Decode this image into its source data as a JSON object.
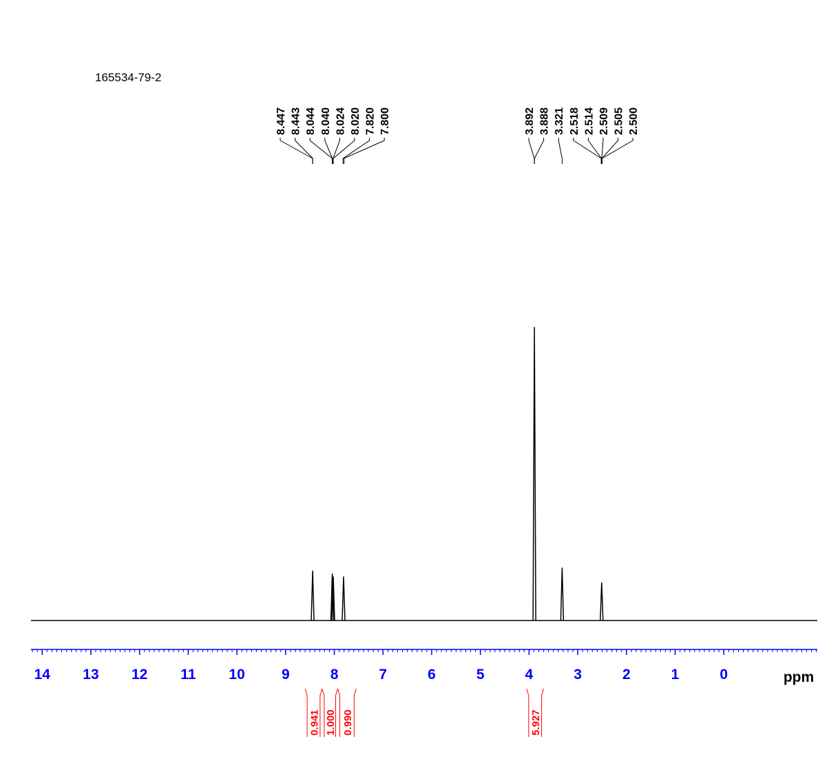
{
  "chart_data": {
    "type": "nmr",
    "title": "165534-79-2",
    "x_label": "ppm",
    "xlim": [
      14.23,
      -1.92
    ],
    "xticks": [
      14,
      13,
      12,
      11,
      10,
      9,
      8,
      7,
      6,
      5,
      4,
      3,
      2,
      1,
      0
    ],
    "ylim": [
      0,
      100
    ],
    "color": "#000000",
    "axis_color": "#0000ff",
    "integral_color": "#ff0000",
    "x": [
      8.445,
      8.042,
      8.022,
      7.81,
      3.89,
      3.321,
      2.509
    ],
    "values": [
      17,
      16,
      15,
      15,
      100,
      18,
      13
    ],
    "peak_label_groups": [
      [
        {
          "value": 8.447,
          "label": "8.447"
        },
        {
          "value": 8.443,
          "label": "8.443"
        },
        {
          "value": 8.044,
          "label": "8.044"
        },
        {
          "value": 8.04,
          "label": "8.040"
        },
        {
          "value": 8.024,
          "label": "8.024"
        },
        {
          "value": 8.02,
          "label": "8.020"
        },
        {
          "value": 7.82,
          "label": "7.820"
        },
        {
          "value": 7.8,
          "label": "7.800"
        }
      ],
      [
        {
          "value": 3.892,
          "label": "3.892"
        },
        {
          "value": 3.888,
          "label": "3.888"
        },
        {
          "value": 3.321,
          "label": "3.321"
        },
        {
          "value": 2.518,
          "label": "2.518"
        },
        {
          "value": 2.514,
          "label": "2.514"
        },
        {
          "value": 2.509,
          "label": "2.509"
        },
        {
          "value": 2.505,
          "label": "2.505"
        },
        {
          "value": 2.5,
          "label": "2.500"
        }
      ]
    ],
    "integrals": [
      {
        "from": 8.6,
        "to": 8.25,
        "value": 0.941,
        "label": "0.941"
      },
      {
        "from": 8.25,
        "to": 7.93,
        "value": 1.0,
        "label": "1.000"
      },
      {
        "from": 7.93,
        "to": 7.55,
        "value": 0.99,
        "label": "0.990"
      },
      {
        "from": 4.05,
        "to": 3.7,
        "value": 5.927,
        "label": "5.927"
      }
    ]
  }
}
